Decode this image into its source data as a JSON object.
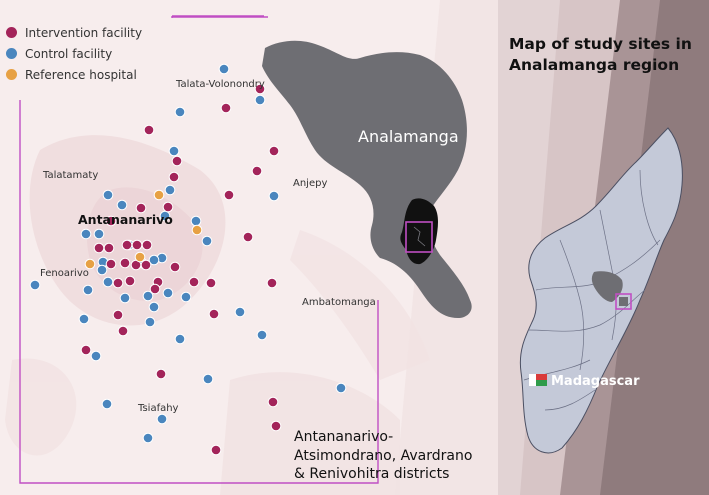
{
  "legend": [
    {
      "label": "Intervention facility",
      "color": "#a3245a"
    },
    {
      "label": "Control facility",
      "color": "#4a86be"
    },
    {
      "label": "Reference hospital",
      "color": "#e7a144"
    }
  ],
  "places": {
    "talata": "Talata-Volonondry",
    "talatamaty": "Talatamaty",
    "anjepy": "Anjepy",
    "antananarivo": "Antananarivo",
    "fenoarivo": "Fenoarivo",
    "ambatomanga": "Ambatomanga",
    "tsiafahy": "Tsiafahy"
  },
  "region_label": "Analamanga",
  "title_lines": [
    "Map of study sites in",
    "Analamanga region"
  ],
  "country_label": "Madagascar",
  "district_lines": [
    "Antananarivo-",
    "Atsimondrano, Avardrano",
    "& Renivohitra districts"
  ],
  "colors": {
    "intervention": "#a3245a",
    "control": "#4a86be",
    "reference": "#e7a144",
    "boundary": "#c04fc3",
    "region": "#6e6e73",
    "district": "#111111",
    "country_fill": "#c4c9d8"
  },
  "facilities": {
    "intervention": [
      [
        149,
        130
      ],
      [
        177,
        161
      ],
      [
        174,
        177
      ],
      [
        226,
        108
      ],
      [
        274,
        151
      ],
      [
        257,
        171
      ],
      [
        229,
        195
      ],
      [
        168,
        207
      ],
      [
        141,
        208
      ],
      [
        111,
        221
      ],
      [
        99,
        248
      ],
      [
        109,
        248
      ],
      [
        127,
        245
      ],
      [
        137,
        245
      ],
      [
        147,
        245
      ],
      [
        125,
        263
      ],
      [
        111,
        264
      ],
      [
        136,
        265
      ],
      [
        146,
        265
      ],
      [
        175,
        267
      ],
      [
        130,
        281
      ],
      [
        118,
        283
      ],
      [
        158,
        282
      ],
      [
        194,
        282
      ],
      [
        211,
        283
      ],
      [
        248,
        237
      ],
      [
        272,
        283
      ],
      [
        118,
        315
      ],
      [
        123,
        331
      ],
      [
        86,
        350
      ],
      [
        161,
        374
      ],
      [
        214,
        314
      ],
      [
        273,
        402
      ],
      [
        276,
        426
      ],
      [
        216,
        450
      ],
      [
        260,
        89
      ],
      [
        155,
        289
      ]
    ],
    "control": [
      [
        224,
        69
      ],
      [
        260,
        100
      ],
      [
        180,
        112
      ],
      [
        170,
        190
      ],
      [
        174,
        151
      ],
      [
        274,
        196
      ],
      [
        108,
        195
      ],
      [
        122,
        205
      ],
      [
        165,
        216
      ],
      [
        196,
        221
      ],
      [
        207,
        241
      ],
      [
        86,
        234
      ],
      [
        99,
        234
      ],
      [
        103,
        262
      ],
      [
        102,
        270
      ],
      [
        162,
        258
      ],
      [
        154,
        260
      ],
      [
        142,
        263
      ],
      [
        129,
        245
      ],
      [
        35,
        285
      ],
      [
        88,
        290
      ],
      [
        108,
        282
      ],
      [
        125,
        298
      ],
      [
        148,
        296
      ],
      [
        168,
        293
      ],
      [
        186,
        297
      ],
      [
        154,
        307
      ],
      [
        150,
        322
      ],
      [
        84,
        319
      ],
      [
        240,
        312
      ],
      [
        262,
        335
      ],
      [
        180,
        339
      ],
      [
        208,
        379
      ],
      [
        341,
        388
      ],
      [
        107,
        404
      ],
      [
        162,
        419
      ],
      [
        148,
        438
      ],
      [
        96,
        356
      ]
    ],
    "reference": [
      [
        159,
        195
      ],
      [
        197,
        230
      ],
      [
        90,
        264
      ],
      [
        140,
        257
      ]
    ]
  }
}
